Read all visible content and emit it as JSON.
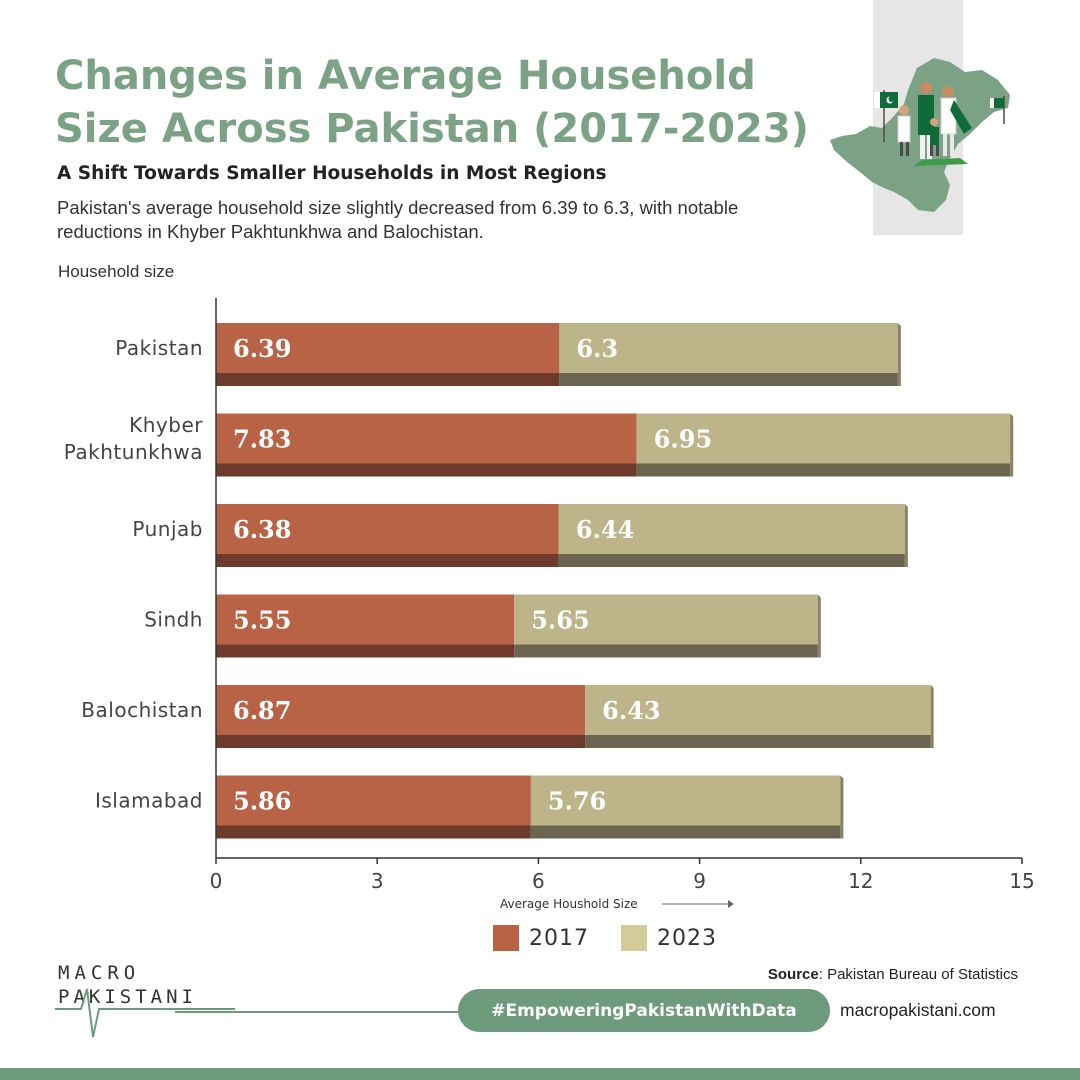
{
  "header": {
    "title": "Changes in Average Household Size Across Pakistan (2017-2023)",
    "subtitle": "A Shift Towards Smaller Households in Most Regions",
    "description": "Pakistan's average household size slightly decreased from 6.39 to 6.3, with notable reductions in Khyber Pakhtunkhwa and Balochistan."
  },
  "chart_data": {
    "type": "bar",
    "orientation": "horizontal",
    "stacked": true,
    "categories": [
      "Pakistan",
      "Khyber Pakhtunkhwa",
      "Punjab",
      "Sindh",
      "Balochistan",
      "Islamabad"
    ],
    "series": [
      {
        "name": "2017",
        "values": [
          6.39,
          7.83,
          6.38,
          5.55,
          6.87,
          5.86
        ],
        "color": "#b86246",
        "shade": "#6e3a2b"
      },
      {
        "name": "2023",
        "values": [
          6.3,
          6.95,
          6.44,
          5.65,
          6.43,
          5.76
        ],
        "color": "#bdb48a",
        "shade": "#6b6450"
      }
    ],
    "ylabel": "Household size",
    "xlabel": "Average Houshold Size",
    "xlim": [
      0,
      15
    ],
    "xticks": [
      0,
      3,
      6,
      9,
      12,
      15
    ],
    "legend": "bottom",
    "grid": false
  },
  "legend": {
    "items": [
      "2017",
      "2023"
    ]
  },
  "branding": {
    "logo_line1": "MACRO",
    "logo_line2": "PAKISTANI",
    "source_label": "Source",
    "source_text": ": Pakistan Bureau of Statistics",
    "hashtag": "#EmpoweringPakistanWithData",
    "website": "macropakistani.com"
  },
  "colors": {
    "title": "#7ba285",
    "accent_green": "#6e9b7d",
    "pakistan_flag_green": "#01411c"
  },
  "icons": [
    "pakistan-map-icon",
    "family-with-flags-icon",
    "heartbeat-line-icon"
  ]
}
